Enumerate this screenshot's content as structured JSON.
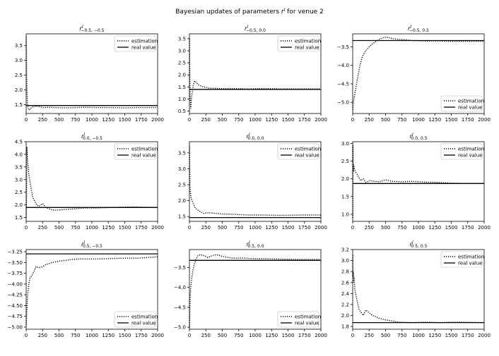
{
  "figure": {
    "title_prefix": "Bayesian updates of parameters ",
    "title_symbol": "r",
    "title_sup": "l",
    "title_suffix": " for venue 2"
  },
  "chart_data": [
    {
      "type": "line",
      "title_base": "r",
      "title_sup": "l",
      "title_sub": "−0.5, −0.5",
      "xlim": [
        0,
        2000
      ],
      "ylim": [
        1.2,
        3.9
      ],
      "xticks": [
        0,
        250,
        500,
        750,
        1000,
        1250,
        1500,
        1750,
        2000
      ],
      "yticks": [
        1.5,
        2.0,
        2.5,
        3.0,
        3.5
      ],
      "ytick_labels": [
        "1.5",
        "2.0",
        "2.5",
        "3.0",
        "3.5"
      ],
      "legend": [
        "estimation",
        "real value"
      ],
      "legend_position": "top-right",
      "real_value": 1.47,
      "series": [
        {
          "name": "estimation",
          "style": "dotted",
          "x": [
            1,
            4,
            8,
            12,
            18,
            25,
            35,
            50,
            70,
            100,
            150,
            200,
            260,
            350,
            450,
            600,
            750,
            900,
            1100,
            1300,
            1500,
            1700,
            2000
          ],
          "y": [
            3.8,
            3.3,
            2.4,
            2.0,
            1.6,
            1.45,
            1.33,
            1.32,
            1.38,
            1.42,
            1.45,
            1.43,
            1.4,
            1.41,
            1.4,
            1.39,
            1.4,
            1.41,
            1.4,
            1.4,
            1.39,
            1.4,
            1.4
          ]
        },
        {
          "name": "real value",
          "style": "solid",
          "x": [
            0,
            2000
          ],
          "y": [
            1.47,
            1.47
          ]
        }
      ]
    },
    {
      "type": "line",
      "title_base": "r",
      "title_sup": "l",
      "title_sub": "−0.5, 0.0",
      "xlim": [
        0,
        2000
      ],
      "ylim": [
        0.4,
        3.7
      ],
      "xticks": [
        0,
        250,
        500,
        750,
        1000,
        1250,
        1500,
        1750,
        2000
      ],
      "yticks": [
        0.5,
        1.0,
        1.5,
        2.0,
        2.5,
        3.0,
        3.5
      ],
      "ytick_labels": [
        "0.5",
        "1.0",
        "1.5",
        "2.0",
        "2.5",
        "3.0",
        "3.5"
      ],
      "legend": [
        "estimation",
        "real value"
      ],
      "legend_position": "top-right",
      "real_value": 1.4,
      "series": [
        {
          "name": "estimation",
          "style": "dotted",
          "x": [
            1,
            3,
            6,
            10,
            15,
            20,
            30,
            45,
            60,
            80,
            100,
            130,
            170,
            220,
            300,
            400,
            500,
            700,
            900,
            1100,
            1400,
            1700,
            2000
          ],
          "y": [
            3.5,
            2.5,
            1.7,
            1.2,
            0.9,
            0.6,
            1.0,
            1.3,
            1.6,
            1.75,
            1.7,
            1.6,
            1.55,
            1.5,
            1.45,
            1.44,
            1.43,
            1.43,
            1.42,
            1.43,
            1.42,
            1.42,
            1.42
          ]
        },
        {
          "name": "real value",
          "style": "solid",
          "x": [
            0,
            2000
          ],
          "y": [
            1.4,
            1.4
          ]
        }
      ]
    },
    {
      "type": "line",
      "title_base": "r",
      "title_sup": "l",
      "title_sub": "−0.5, 0.5",
      "xlim": [
        0,
        2000
      ],
      "ylim": [
        -5.3,
        -3.15
      ],
      "xticks": [
        0,
        250,
        500,
        750,
        1000,
        1250,
        1500,
        1750,
        2000
      ],
      "yticks": [
        -5.0,
        -4.5,
        -4.0,
        -3.5
      ],
      "ytick_labels": [
        "−5.0",
        "−4.5",
        "−4.0",
        "−3.5"
      ],
      "legend": [
        "estimation",
        "real value"
      ],
      "legend_position": "bottom-right",
      "real_value": -3.33,
      "series": [
        {
          "name": "estimation",
          "style": "dotted",
          "x": [
            1,
            10,
            25,
            50,
            80,
            110,
            150,
            200,
            250,
            300,
            350,
            400,
            450,
            500,
            550,
            600,
            700,
            800,
            900,
            1100,
            1300,
            1500,
            1700,
            2000
          ],
          "y": [
            -5.2,
            -5.0,
            -4.85,
            -4.6,
            -4.3,
            -4.0,
            -3.75,
            -3.6,
            -3.5,
            -3.42,
            -3.36,
            -3.3,
            -3.26,
            -3.24,
            -3.25,
            -3.28,
            -3.3,
            -3.31,
            -3.33,
            -3.34,
            -3.34,
            -3.35,
            -3.35,
            -3.35
          ]
        },
        {
          "name": "real value",
          "style": "solid",
          "x": [
            0,
            2000
          ],
          "y": [
            -3.33,
            -3.33
          ]
        }
      ]
    },
    {
      "type": "line",
      "title_base": "r",
      "title_sup": "l",
      "title_sub": "0.0, −0.5",
      "xlim": [
        0,
        2000
      ],
      "ylim": [
        1.35,
        4.5
      ],
      "xticks": [
        0,
        250,
        500,
        750,
        1000,
        1250,
        1500,
        1750,
        2000
      ],
      "yticks": [
        1.5,
        2.0,
        2.5,
        3.0,
        3.5,
        4.0,
        4.5
      ],
      "ytick_labels": [
        "1.5",
        "2.0",
        "2.5",
        "3.0",
        "3.5",
        "4.0",
        "4.5"
      ],
      "legend": [
        "estimation",
        "real value"
      ],
      "legend_position": "top-right",
      "real_value": 1.9,
      "series": [
        {
          "name": "estimation",
          "style": "dotted",
          "x": [
            1,
            5,
            10,
            15,
            20,
            30,
            40,
            60,
            80,
            100,
            130,
            160,
            200,
            250,
            300,
            400,
            500,
            600,
            750,
            900,
            1100,
            1300,
            1600,
            2000
          ],
          "y": [
            1.5,
            2.3,
            4.3,
            4.1,
            3.8,
            3.5,
            3.2,
            2.9,
            2.6,
            2.3,
            2.15,
            2.0,
            1.95,
            2.05,
            1.9,
            1.8,
            1.8,
            1.82,
            1.85,
            1.88,
            1.88,
            1.9,
            1.92,
            1.9
          ]
        },
        {
          "name": "real value",
          "style": "solid",
          "x": [
            0,
            2000
          ],
          "y": [
            1.9,
            1.9
          ]
        }
      ]
    },
    {
      "type": "line",
      "title_base": "r",
      "title_sup": "l",
      "title_sub": "0.0, 0.0",
      "xlim": [
        0,
        2000
      ],
      "ylim": [
        1.35,
        3.85
      ],
      "xticks": [
        0,
        250,
        500,
        750,
        1000,
        1250,
        1500,
        1750,
        2000
      ],
      "yticks": [
        1.5,
        2.0,
        2.5,
        3.0,
        3.5
      ],
      "ytick_labels": [
        "1.5",
        "2.0",
        "2.5",
        "3.0",
        "3.5"
      ],
      "legend": [
        "estimation",
        "real value"
      ],
      "legend_position": "top-right",
      "real_value": 1.47,
      "series": [
        {
          "name": "estimation",
          "style": "dotted",
          "x": [
            1,
            4,
            8,
            12,
            18,
            25,
            40,
            60,
            80,
            100,
            130,
            170,
            220,
            300,
            400,
            500,
            700,
            900,
            1100,
            1300,
            1500,
            1700,
            2000
          ],
          "y": [
            3.7,
            3.0,
            2.5,
            2.3,
            2.2,
            2.1,
            2.0,
            1.9,
            1.8,
            1.75,
            1.7,
            1.65,
            1.6,
            1.62,
            1.6,
            1.58,
            1.57,
            1.55,
            1.55,
            1.54,
            1.54,
            1.55,
            1.55
          ]
        },
        {
          "name": "real value",
          "style": "solid",
          "x": [
            0,
            2000
          ],
          "y": [
            1.47,
            1.47
          ]
        }
      ]
    },
    {
      "type": "line",
      "title_base": "r",
      "title_sup": "l",
      "title_sub": "0.0, 0.5",
      "xlim": [
        0,
        2000
      ],
      "ylim": [
        0.8,
        3.05
      ],
      "xticks": [
        0,
        250,
        500,
        750,
        1000,
        1250,
        1500,
        1750,
        2000
      ],
      "yticks": [
        1.0,
        1.5,
        2.0,
        2.5,
        3.0
      ],
      "ytick_labels": [
        "1.0",
        "1.5",
        "2.0",
        "2.5",
        "3.0"
      ],
      "legend": [
        "estimation",
        "real value"
      ],
      "legend_position": "top-right",
      "real_value": 1.87,
      "series": [
        {
          "name": "estimation",
          "style": "dotted",
          "x": [
            1,
            3,
            6,
            10,
            15,
            25,
            40,
            60,
            90,
            120,
            160,
            200,
            260,
            330,
            400,
            500,
            600,
            750,
            900,
            1100,
            1300,
            1500,
            1700,
            2000
          ],
          "y": [
            0.9,
            2.95,
            2.5,
            2.2,
            2.4,
            2.3,
            2.2,
            2.15,
            2.05,
            1.95,
            2.0,
            1.9,
            1.95,
            1.93,
            1.92,
            1.97,
            1.93,
            1.92,
            1.93,
            1.91,
            1.9,
            1.88,
            1.87,
            1.87
          ]
        },
        {
          "name": "real value",
          "style": "solid",
          "x": [
            0,
            2000
          ],
          "y": [
            1.87,
            1.87
          ]
        }
      ]
    },
    {
      "type": "line",
      "title_base": "r",
      "title_sup": "l",
      "title_sub": "0.5, −0.5",
      "xlim": [
        0,
        2000
      ],
      "ylim": [
        -5.05,
        -3.2
      ],
      "xticks": [
        0,
        250,
        500,
        750,
        1000,
        1250,
        1500,
        1750,
        2000
      ],
      "yticks": [
        -5.0,
        -4.75,
        -4.5,
        -4.25,
        -4.0,
        -3.75,
        -3.5,
        -3.25
      ],
      "ytick_labels": [
        "−5.00",
        "−4.75",
        "−4.50",
        "−4.25",
        "−4.00",
        "−3.75",
        "−3.50",
        "−3.25"
      ],
      "legend": [
        "estimation",
        "real value"
      ],
      "legend_position": "bottom-right",
      "real_value": -3.3,
      "series": [
        {
          "name": "estimation",
          "style": "dotted",
          "x": [
            1,
            8,
            20,
            40,
            60,
            90,
            120,
            150,
            200,
            250,
            300,
            400,
            500,
            600,
            700,
            800,
            900,
            1100,
            1300,
            1500,
            1700,
            1900,
            2000
          ],
          "y": [
            -4.95,
            -4.7,
            -4.3,
            -4.0,
            -3.85,
            -3.8,
            -3.7,
            -3.6,
            -3.62,
            -3.6,
            -3.55,
            -3.5,
            -3.47,
            -3.45,
            -3.43,
            -3.42,
            -3.42,
            -3.42,
            -3.41,
            -3.4,
            -3.4,
            -3.38,
            -3.37
          ]
        },
        {
          "name": "real value",
          "style": "solid",
          "x": [
            0,
            2000
          ],
          "y": [
            -3.3,
            -3.3
          ]
        }
      ]
    },
    {
      "type": "line",
      "title_base": "r",
      "title_sup": "l",
      "title_sub": "0.5, 0.0",
      "xlim": [
        0,
        2000
      ],
      "ylim": [
        -5.05,
        -3.05
      ],
      "xticks": [
        0,
        250,
        500,
        750,
        1000,
        1250,
        1500,
        1750,
        2000
      ],
      "yticks": [
        -5.0,
        -4.5,
        -4.0,
        -3.5
      ],
      "ytick_labels": [
        "−5.0",
        "−4.5",
        "−4.0",
        "−3.5"
      ],
      "legend": [
        "estimation",
        "real value"
      ],
      "legend_position": "bottom-right",
      "real_value": -3.32,
      "series": [
        {
          "name": "estimation",
          "style": "dotted",
          "x": [
            1,
            5,
            10,
            20,
            30,
            50,
            70,
            100,
            130,
            170,
            220,
            280,
            350,
            420,
            500,
            600,
            700,
            800,
            1000,
            1200,
            1400,
            1600,
            1800,
            2000
          ],
          "y": [
            -5.0,
            -4.6,
            -4.3,
            -4.0,
            -3.85,
            -3.6,
            -3.45,
            -3.3,
            -3.2,
            -3.18,
            -3.2,
            -3.25,
            -3.2,
            -3.18,
            -3.22,
            -3.25,
            -3.27,
            -3.26,
            -3.28,
            -3.28,
            -3.29,
            -3.3,
            -3.3,
            -3.3
          ]
        },
        {
          "name": "real value",
          "style": "solid",
          "x": [
            0,
            2000
          ],
          "y": [
            -3.32,
            -3.32
          ]
        }
      ]
    },
    {
      "type": "line",
      "title_base": "r",
      "title_sup": "l",
      "title_sub": "0.5, 0.5",
      "xlim": [
        0,
        2000
      ],
      "ylim": [
        1.75,
        3.2
      ],
      "xticks": [
        0,
        250,
        500,
        750,
        1000,
        1250,
        1500,
        1750,
        2000
      ],
      "yticks": [
        1.8,
        2.0,
        2.2,
        2.4,
        2.6,
        2.8,
        3.0,
        3.2
      ],
      "ytick_labels": [
        "1.8",
        "2.0",
        "2.2",
        "2.4",
        "2.6",
        "2.8",
        "3.0",
        "3.2"
      ],
      "legend": [
        "estimation",
        "real value"
      ],
      "legend_position": "top-right",
      "real_value": 1.87,
      "series": [
        {
          "name": "estimation",
          "style": "dotted",
          "x": [
            1,
            4,
            8,
            14,
            20,
            30,
            45,
            60,
            80,
            100,
            130,
            160,
            200,
            250,
            300,
            350,
            400,
            500,
            600,
            700,
            900,
            1100,
            1300,
            1600,
            2000
          ],
          "y": [
            3.1,
            2.7,
            2.8,
            2.6,
            2.7,
            2.5,
            2.4,
            2.3,
            2.2,
            2.1,
            2.05,
            2.0,
            2.1,
            2.05,
            2.0,
            1.98,
            1.95,
            1.92,
            1.9,
            1.88,
            1.87,
            1.88,
            1.87,
            1.88,
            1.87
          ]
        },
        {
          "name": "real value",
          "style": "solid",
          "x": [
            0,
            2000
          ],
          "y": [
            1.87,
            1.87
          ]
        }
      ]
    }
  ]
}
